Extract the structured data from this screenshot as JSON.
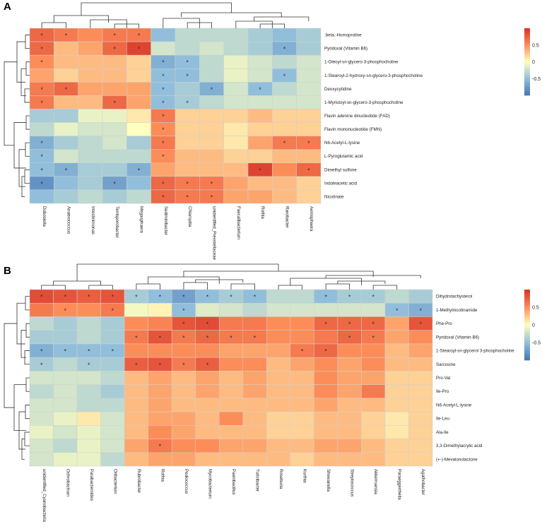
{
  "colors": {
    "low": "#4575b4",
    "mid": "#ffffbf",
    "high": "#d73027",
    "lowMid": "#91bfdb",
    "highMid": "#fc8d59"
  },
  "chart_data": [
    {
      "type": "heatmap",
      "panel_label": "A",
      "columns": [
        "Dubosiella",
        "Anaerococcus",
        "Intestinimonas",
        "Terrisporobacter",
        "Megasphaera",
        "Sediminibacter",
        "Chlamydia",
        "unidentified_Prevotellaceae",
        "Faecalibacterium",
        "Rothia",
        "Rarobacter",
        "Aerosphaera"
      ],
      "rows": [
        ".beta.-Homoproline",
        "Pyridoxal (Vitamin B6)",
        "1-Oleoyl-sn-glycero-3-phosphocholine",
        "1-Stearoyl-2-hydroxy-sn-glycero-3-phosphocholine",
        "Deoxycytidine",
        "1-Myristoyl-sn-glycero-3-phosphocholine",
        "Flavin adenine dinucleotide (FAD)",
        "Flavin mononucleotide (FMN)",
        "N6-Acetyl-L-lysine",
        "L-Pyroglutamic acid",
        "Dimethyl sulfone",
        "Indoleacetic acid",
        "Nicotinate"
      ],
      "values": [
        [
          0.7,
          0.6,
          0.5,
          0.6,
          0.6,
          -0.5,
          -0.3,
          -0.3,
          -0.3,
          -0.4,
          -0.5,
          -0.4
        ],
        [
          0.7,
          0.3,
          0.4,
          0.7,
          0.9,
          -0.2,
          -0.3,
          -0.2,
          -0.3,
          -0.4,
          -0.6,
          -0.4
        ],
        [
          0.5,
          0.3,
          0.3,
          0.3,
          0.2,
          -0.6,
          -0.5,
          -0.3,
          -0.1,
          -0.2,
          -0.3,
          -0.2
        ],
        [
          0.4,
          0.2,
          0.3,
          0.3,
          0.2,
          -0.5,
          -0.5,
          -0.3,
          -0.1,
          -0.2,
          -0.5,
          -0.2
        ],
        [
          0.6,
          0.7,
          0.4,
          0.4,
          0.4,
          -0.5,
          -0.4,
          -0.6,
          -0.2,
          -0.5,
          -0.3,
          -0.2
        ],
        [
          0.6,
          0.3,
          0.3,
          0.7,
          0.4,
          -0.5,
          -0.4,
          -0.3,
          -0.2,
          -0.2,
          -0.2,
          -0.2
        ],
        [
          -0.4,
          -0.4,
          -0.1,
          -0.1,
          0.1,
          0.6,
          0.2,
          0.2,
          0.2,
          0.3,
          0.2,
          0.2
        ],
        [
          -0.3,
          -0.1,
          -0.2,
          -0.2,
          0.0,
          0.5,
          0.2,
          0.2,
          0.1,
          0.2,
          0.2,
          0.2
        ],
        [
          -0.6,
          -0.4,
          -0.3,
          -0.2,
          -0.4,
          0.6,
          0.2,
          0.2,
          0.1,
          0.4,
          0.6,
          0.6
        ],
        [
          -0.5,
          -0.2,
          -0.3,
          -0.3,
          -0.3,
          0.5,
          0.3,
          0.3,
          0.2,
          0.2,
          0.3,
          0.3
        ],
        [
          -0.5,
          -0.6,
          -0.4,
          -0.4,
          -0.6,
          0.4,
          0.3,
          0.3,
          0.3,
          0.9,
          0.5,
          0.7
        ],
        [
          -0.8,
          -0.5,
          -0.4,
          -0.7,
          -0.5,
          0.7,
          0.6,
          0.6,
          0.4,
          0.3,
          0.3,
          0.2
        ],
        [
          -0.5,
          -0.4,
          -0.3,
          -0.4,
          -0.3,
          0.7,
          0.6,
          0.6,
          0.4,
          0.4,
          0.3,
          0.2
        ]
      ],
      "stars": [
        [
          1,
          1,
          0,
          1,
          1,
          0,
          0,
          0,
          0,
          0,
          0,
          0
        ],
        [
          1,
          0,
          0,
          1,
          1,
          0,
          0,
          0,
          0,
          0,
          1,
          0
        ],
        [
          1,
          0,
          0,
          0,
          0,
          1,
          1,
          0,
          0,
          0,
          0,
          0
        ],
        [
          0,
          0,
          0,
          0,
          0,
          1,
          1,
          0,
          0,
          0,
          1,
          0
        ],
        [
          1,
          1,
          0,
          0,
          0,
          1,
          0,
          1,
          0,
          1,
          0,
          0
        ],
        [
          1,
          0,
          0,
          1,
          0,
          1,
          1,
          0,
          0,
          0,
          0,
          0
        ],
        [
          0,
          0,
          0,
          0,
          0,
          1,
          0,
          0,
          0,
          0,
          0,
          0
        ],
        [
          0,
          0,
          0,
          0,
          0,
          1,
          0,
          0,
          0,
          0,
          0,
          0
        ],
        [
          1,
          0,
          0,
          0,
          0,
          1,
          0,
          0,
          0,
          0,
          1,
          1
        ],
        [
          1,
          0,
          0,
          0,
          0,
          1,
          0,
          0,
          0,
          0,
          0,
          0
        ],
        [
          1,
          1,
          0,
          0,
          1,
          0,
          0,
          0,
          0,
          1,
          0,
          1
        ],
        [
          1,
          0,
          0,
          1,
          0,
          1,
          1,
          1,
          0,
          0,
          0,
          0
        ],
        [
          0,
          0,
          0,
          0,
          0,
          1,
          1,
          1,
          0,
          0,
          0,
          0
        ]
      ],
      "legend_ticks": [
        "0.5",
        "0",
        "-0.5"
      ]
    },
    {
      "type": "heatmap",
      "panel_label": "B",
      "columns": [
        "unidentified_Cyanobacteria",
        "Ochrobactrum",
        "Parabacteroides",
        "Oribacterium",
        "Rubrobacter",
        "Rothia",
        "Pediococcus",
        "Mycobacterium",
        "Paenibacillus",
        "Turicibacter",
        "Roseburia",
        "Kurthia",
        "Shewanella",
        "Streptococcus",
        "Akkermansia",
        "Paraeggerthella",
        "Agathobacter"
      ],
      "rows": [
        "Dihydrotachysterol",
        "1-Methylnicotinamide",
        "Phe-Pro",
        "Pyridoxal (Vitamin B6)",
        "1-Stearoyl-sn-glycerol 3-phosphocholine",
        "Sarcosine",
        "Pro-Val",
        "Ile-Pro",
        "N6-Acetyl-L-lysine",
        "Ile-Leu",
        "Ala-Ile",
        "3,3-Dimethylacrylic acid",
        "(+-)-Mevalonolactone"
      ],
      "values": [
        [
          0.85,
          0.8,
          0.75,
          0.8,
          -0.4,
          -0.5,
          -0.7,
          -0.5,
          -0.4,
          -0.5,
          -0.3,
          -0.3,
          -0.5,
          -0.4,
          -0.4,
          -0.3,
          -0.4
        ],
        [
          0.6,
          0.5,
          0.5,
          0.6,
          -0.05,
          0.05,
          -0.5,
          -0.15,
          -0.2,
          -0.3,
          -0.2,
          -0.2,
          -0.2,
          -0.2,
          -0.2,
          -0.5,
          -0.6
        ],
        [
          -0.3,
          -0.4,
          -0.3,
          -0.4,
          0.5,
          0.55,
          0.8,
          0.85,
          0.6,
          0.6,
          0.5,
          0.5,
          0.7,
          0.7,
          0.7,
          0.4,
          0.8
        ],
        [
          -0.4,
          -0.4,
          -0.3,
          -0.4,
          0.6,
          0.8,
          0.6,
          0.7,
          0.6,
          0.6,
          0.5,
          0.5,
          0.6,
          0.7,
          0.6,
          0.4,
          0.5
        ],
        [
          -0.6,
          -0.5,
          -0.5,
          -0.5,
          0.5,
          0.5,
          0.5,
          0.5,
          0.4,
          0.4,
          0.4,
          0.6,
          0.7,
          0.5,
          0.5,
          0.3,
          0.4
        ],
        [
          -0.4,
          -0.3,
          -0.4,
          -0.4,
          0.75,
          0.8,
          0.6,
          0.75,
          0.5,
          0.5,
          0.3,
          0.4,
          0.5,
          0.4,
          0.5,
          0.3,
          0.3
        ],
        [
          -0.2,
          -0.2,
          -0.2,
          -0.3,
          0.3,
          0.4,
          0.3,
          0.4,
          0.3,
          0.4,
          0.3,
          0.3,
          0.5,
          0.4,
          0.4,
          0.2,
          0.2
        ],
        [
          -0.3,
          -0.2,
          -0.3,
          -0.4,
          0.3,
          0.4,
          0.3,
          0.4,
          0.3,
          0.4,
          0.3,
          0.3,
          0.5,
          0.4,
          0.6,
          0.2,
          0.2
        ],
        [
          -0.2,
          -0.2,
          -0.3,
          -0.3,
          0.3,
          0.4,
          0.3,
          0.3,
          0.3,
          0.3,
          0.3,
          0.3,
          0.4,
          0.3,
          0.3,
          0.2,
          0.2
        ],
        [
          -0.2,
          -0.1,
          0.1,
          -0.2,
          0.3,
          0.4,
          0.4,
          0.3,
          0.5,
          0.3,
          0.2,
          0.2,
          0.3,
          0.3,
          0.2,
          0.1,
          0.2
        ],
        [
          -0.1,
          -0.2,
          -0.1,
          -0.2,
          0.3,
          0.5,
          0.4,
          0.3,
          0.3,
          0.3,
          0.2,
          0.2,
          0.3,
          0.3,
          0.2,
          0.1,
          0.2
        ],
        [
          -0.2,
          -0.3,
          -0.1,
          -0.2,
          0.4,
          0.6,
          0.5,
          0.5,
          0.4,
          0.4,
          0.3,
          0.3,
          0.4,
          0.4,
          0.3,
          0.2,
          0.2
        ],
        [
          -0.2,
          -0.1,
          -0.1,
          -0.3,
          0.3,
          0.4,
          0.4,
          0.3,
          0.3,
          0.3,
          0.3,
          0.2,
          0.3,
          0.3,
          0.3,
          0.2,
          0.2
        ]
      ],
      "stars": [
        [
          1,
          1,
          1,
          1,
          1,
          1,
          1,
          1,
          1,
          1,
          0,
          0,
          1,
          1,
          1,
          0,
          0
        ],
        [
          0,
          1,
          0,
          1,
          0,
          0,
          1,
          0,
          0,
          0,
          0,
          0,
          0,
          0,
          0,
          1,
          1
        ],
        [
          0,
          0,
          0,
          0,
          0,
          0,
          1,
          1,
          0,
          0,
          0,
          0,
          1,
          1,
          1,
          0,
          1
        ],
        [
          0,
          0,
          0,
          0,
          1,
          1,
          1,
          1,
          1,
          1,
          0,
          0,
          0,
          1,
          1,
          0,
          0
        ],
        [
          1,
          1,
          1,
          1,
          0,
          0,
          0,
          0,
          0,
          0,
          0,
          1,
          1,
          0,
          0,
          0,
          0
        ],
        [
          1,
          0,
          1,
          0,
          1,
          1,
          1,
          1,
          0,
          0,
          0,
          0,
          0,
          0,
          0,
          0,
          0
        ],
        [
          0,
          0,
          0,
          0,
          0,
          0,
          0,
          0,
          0,
          0,
          0,
          0,
          0,
          0,
          0,
          0,
          0
        ],
        [
          0,
          0,
          0,
          0,
          0,
          0,
          0,
          0,
          0,
          0,
          0,
          0,
          0,
          0,
          0,
          0,
          0
        ],
        [
          0,
          0,
          0,
          0,
          0,
          0,
          0,
          0,
          0,
          0,
          0,
          0,
          0,
          0,
          0,
          0,
          0
        ],
        [
          0,
          0,
          0,
          0,
          0,
          0,
          0,
          0,
          0,
          0,
          0,
          0,
          0,
          0,
          0,
          0,
          0
        ],
        [
          0,
          0,
          0,
          0,
          0,
          0,
          0,
          0,
          0,
          0,
          0,
          0,
          0,
          0,
          0,
          0,
          0
        ],
        [
          0,
          0,
          0,
          0,
          0,
          1,
          0,
          0,
          0,
          0,
          0,
          0,
          0,
          0,
          0,
          0,
          0
        ],
        [
          0,
          0,
          0,
          0,
          0,
          0,
          0,
          0,
          0,
          0,
          0,
          0,
          0,
          0,
          0,
          0,
          0
        ]
      ],
      "legend_ticks": [
        "0.5",
        "0",
        "-0.5"
      ]
    }
  ]
}
